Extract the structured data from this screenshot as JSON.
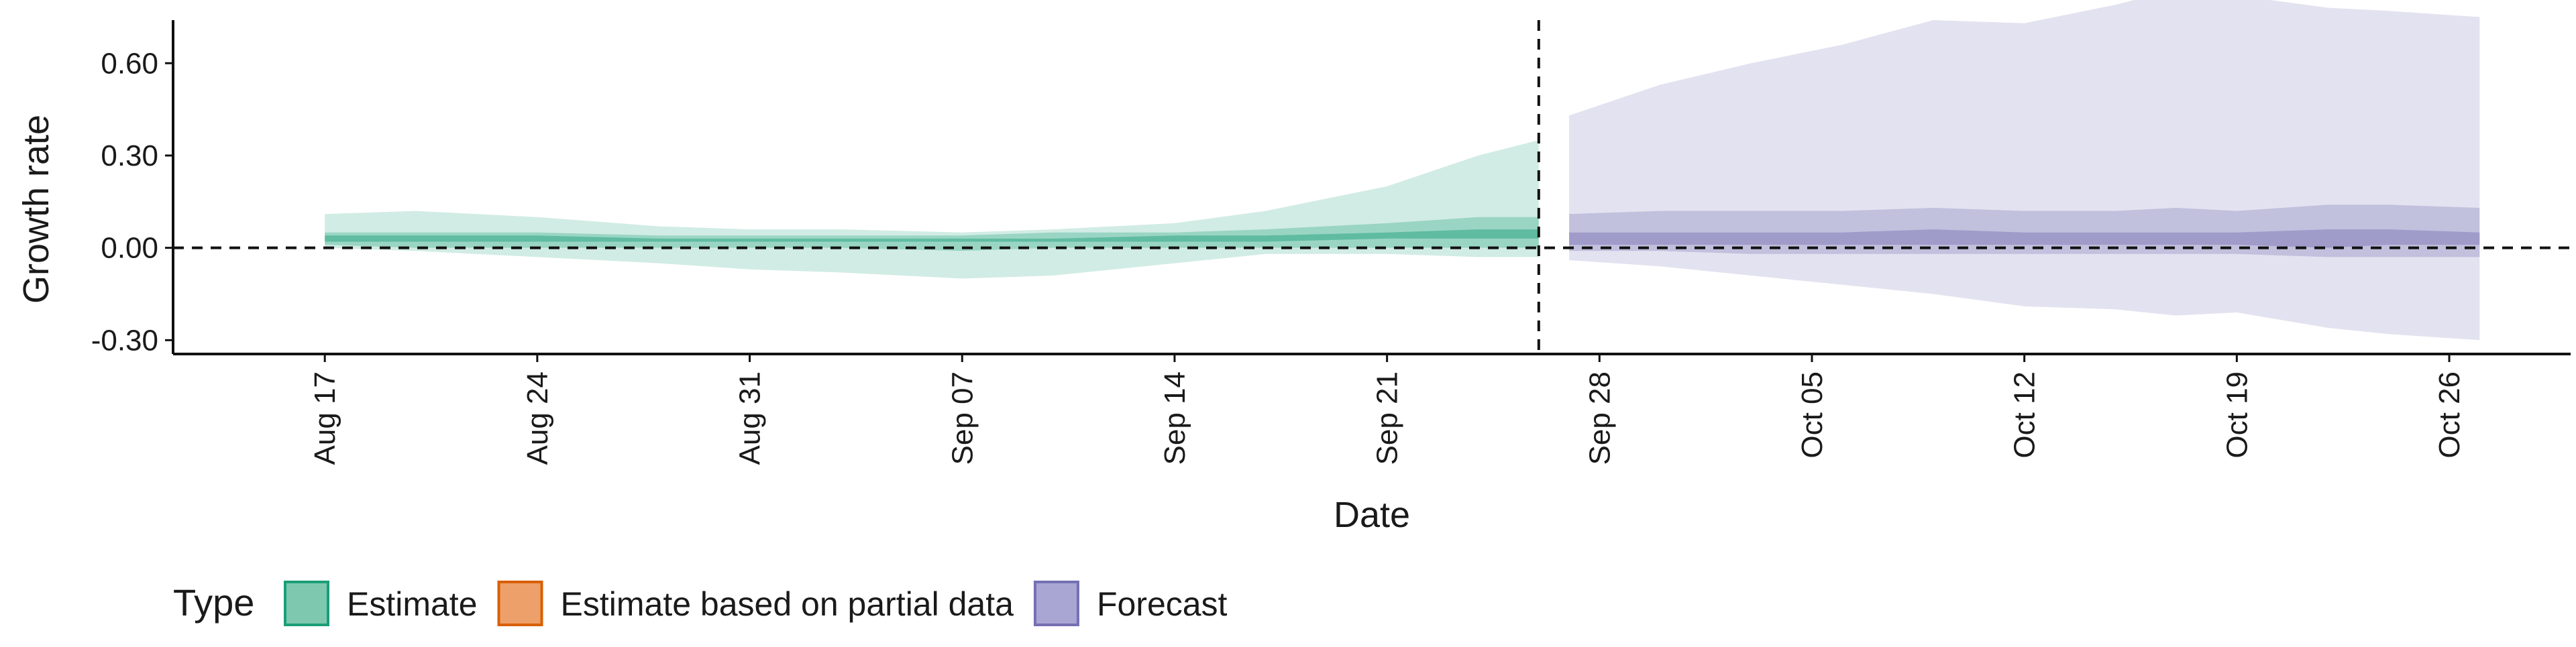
{
  "chart_data": {
    "type": "area",
    "title": "",
    "xlabel": "Date",
    "ylabel": "Growth rate",
    "ylim": [
      -0.345,
      0.74
    ],
    "xlim": [
      "2020-08-12",
      "2020-10-30"
    ],
    "y_ticks": [
      {
        "value": -0.3,
        "label": "-0.30"
      },
      {
        "value": 0.0,
        "label": "0.00"
      },
      {
        "value": 0.3,
        "label": "0.30"
      },
      {
        "value": 0.6,
        "label": "0.60"
      }
    ],
    "x_ticks": [
      {
        "date": "2020-08-17",
        "label": "Aug 17"
      },
      {
        "date": "2020-08-24",
        "label": "Aug 24"
      },
      {
        "date": "2020-08-31",
        "label": "Aug 31"
      },
      {
        "date": "2020-09-07",
        "label": "Sep 07"
      },
      {
        "date": "2020-09-14",
        "label": "Sep 14"
      },
      {
        "date": "2020-09-21",
        "label": "Sep 21"
      },
      {
        "date": "2020-09-28",
        "label": "Sep 28"
      },
      {
        "date": "2020-10-05",
        "label": "Oct 05"
      },
      {
        "date": "2020-10-12",
        "label": "Oct 12"
      },
      {
        "date": "2020-10-19",
        "label": "Oct 19"
      },
      {
        "date": "2020-10-26",
        "label": "Oct 26"
      }
    ],
    "reference_lines": {
      "horizontal_y": 0.0,
      "vertical_date": "2020-09-26"
    },
    "grid": false,
    "legend": {
      "title": "Type",
      "position": "bottom-left",
      "entries": [
        {
          "label": "Estimate",
          "fill": "#7fc8b0",
          "border": "#1b9e77"
        },
        {
          "label": "Estimate based on partial data",
          "fill": "#eda06a",
          "border": "#d95f02"
        },
        {
          "label": "Forecast",
          "fill": "#a9a6d3",
          "border": "#7570b3"
        }
      ]
    },
    "series": [
      {
        "name": "Estimate",
        "color": "#1b9e77",
        "x": [
          "2020-08-17",
          "2020-08-20",
          "2020-08-24",
          "2020-08-28",
          "2020-08-31",
          "2020-09-03",
          "2020-09-07",
          "2020-09-10",
          "2020-09-14",
          "2020-09-17",
          "2020-09-21",
          "2020-09-24",
          "2020-09-26"
        ],
        "outer_low": [
          0.0,
          -0.01,
          -0.03,
          -0.05,
          -0.07,
          -0.08,
          -0.1,
          -0.09,
          -0.05,
          -0.02,
          -0.02,
          -0.03,
          -0.03
        ],
        "outer_high": [
          0.11,
          0.12,
          0.1,
          0.07,
          0.06,
          0.06,
          0.05,
          0.06,
          0.08,
          0.12,
          0.2,
          0.3,
          0.35
        ],
        "mid_low": [
          0.01,
          0.0,
          0.0,
          0.0,
          0.0,
          0.0,
          -0.01,
          0.0,
          0.0,
          0.0,
          0.0,
          0.0,
          0.0
        ],
        "mid_high": [
          0.05,
          0.05,
          0.05,
          0.04,
          0.04,
          0.04,
          0.04,
          0.05,
          0.05,
          0.06,
          0.08,
          0.1,
          0.1
        ],
        "inner_low": [
          0.02,
          0.02,
          0.02,
          0.02,
          0.02,
          0.02,
          0.02,
          0.02,
          0.02,
          0.02,
          0.03,
          0.03,
          0.03
        ],
        "inner_high": [
          0.04,
          0.04,
          0.04,
          0.03,
          0.03,
          0.03,
          0.03,
          0.03,
          0.04,
          0.04,
          0.05,
          0.06,
          0.06
        ]
      },
      {
        "name": "Forecast",
        "color": "#7570b3",
        "x": [
          "2020-09-27",
          "2020-09-30",
          "2020-10-03",
          "2020-10-06",
          "2020-10-09",
          "2020-10-12",
          "2020-10-15",
          "2020-10-17",
          "2020-10-19",
          "2020-10-22",
          "2020-10-24",
          "2020-10-27"
        ],
        "outer_low": [
          -0.04,
          -0.06,
          -0.09,
          -0.12,
          -0.15,
          -0.19,
          -0.2,
          -0.22,
          -0.21,
          -0.26,
          -0.28,
          -0.3
        ],
        "outer_high": [
          0.43,
          0.53,
          0.6,
          0.66,
          0.74,
          0.73,
          0.79,
          0.84,
          0.82,
          0.78,
          0.77,
          0.75
        ],
        "mid_low": [
          -0.01,
          -0.01,
          -0.02,
          -0.02,
          -0.02,
          -0.02,
          -0.02,
          -0.02,
          -0.02,
          -0.03,
          -0.03,
          -0.03
        ],
        "mid_high": [
          0.11,
          0.12,
          0.12,
          0.12,
          0.13,
          0.12,
          0.12,
          0.13,
          0.12,
          0.14,
          0.14,
          0.13
        ],
        "inner_low": [
          0.01,
          0.01,
          0.01,
          0.01,
          0.01,
          0.01,
          0.01,
          0.01,
          0.01,
          0.0,
          0.01,
          0.01
        ],
        "inner_high": [
          0.05,
          0.05,
          0.05,
          0.05,
          0.06,
          0.05,
          0.05,
          0.05,
          0.05,
          0.06,
          0.06,
          0.05
        ]
      }
    ]
  }
}
